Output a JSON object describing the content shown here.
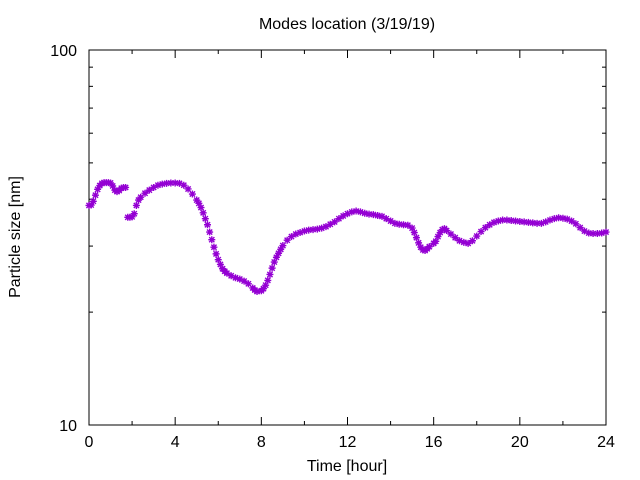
{
  "chart_data": {
    "type": "scatter",
    "title": "Modes location (3/19/19)",
    "xlabel": "Time [hour]",
    "ylabel": "Particle size [nm]",
    "xlim": [
      0,
      24
    ],
    "ylim": [
      10,
      100
    ],
    "yscale": "log",
    "x_ticks": [
      "0",
      "4",
      "8",
      "12",
      "16",
      "20",
      "24"
    ],
    "y_ticks": [
      "10",
      "100"
    ],
    "grid": false,
    "marker": "star",
    "color": "#9400d3",
    "series": [
      {
        "points": [
          [
            0.0,
            38.5
          ],
          [
            0.1,
            38.6
          ],
          [
            0.2,
            39.5
          ],
          [
            0.3,
            41.0
          ],
          [
            0.4,
            42.5
          ],
          [
            0.5,
            43.5
          ],
          [
            0.6,
            44.1
          ],
          [
            0.7,
            44.3
          ],
          [
            0.8,
            44.3
          ],
          [
            0.9,
            44.3
          ],
          [
            1.0,
            44.2
          ],
          [
            1.1,
            43.4
          ],
          [
            1.2,
            42.3
          ],
          [
            1.3,
            41.9
          ],
          [
            1.4,
            42.2
          ],
          [
            1.5,
            42.8
          ],
          [
            1.6,
            43.0
          ],
          [
            1.7,
            43.0
          ],
          [
            1.8,
            35.8
          ],
          [
            1.9,
            35.8
          ],
          [
            2.0,
            35.9
          ],
          [
            2.1,
            36.6
          ],
          [
            2.2,
            38.5
          ],
          [
            2.3,
            39.8
          ],
          [
            2.4,
            40.5
          ],
          [
            2.6,
            41.5
          ],
          [
            2.8,
            42.3
          ],
          [
            3.0,
            43.0
          ],
          [
            3.2,
            43.6
          ],
          [
            3.4,
            43.9
          ],
          [
            3.6,
            44.1
          ],
          [
            3.8,
            44.2
          ],
          [
            4.0,
            44.2
          ],
          [
            4.2,
            44.1
          ],
          [
            4.4,
            43.6
          ],
          [
            4.6,
            42.6
          ],
          [
            4.8,
            41.3
          ],
          [
            5.0,
            39.8
          ],
          [
            5.1,
            39.0
          ],
          [
            5.2,
            38.0
          ],
          [
            5.3,
            36.8
          ],
          [
            5.4,
            35.5
          ],
          [
            5.5,
            34.2
          ],
          [
            5.6,
            32.7
          ],
          [
            5.7,
            31.2
          ],
          [
            5.8,
            29.8
          ],
          [
            5.9,
            28.6
          ],
          [
            6.0,
            27.6
          ],
          [
            6.1,
            26.8
          ],
          [
            6.2,
            26.1
          ],
          [
            6.3,
            25.7
          ],
          [
            6.4,
            25.4
          ],
          [
            6.6,
            25.0
          ],
          [
            6.8,
            24.7
          ],
          [
            7.0,
            24.5
          ],
          [
            7.2,
            24.2
          ],
          [
            7.4,
            23.8
          ],
          [
            7.6,
            23.2
          ],
          [
            7.7,
            22.9
          ],
          [
            7.8,
            22.7
          ],
          [
            8.0,
            22.8
          ],
          [
            8.1,
            23.1
          ],
          [
            8.2,
            23.6
          ],
          [
            8.3,
            24.3
          ],
          [
            8.4,
            25.2
          ],
          [
            8.5,
            26.2
          ],
          [
            8.6,
            27.2
          ],
          [
            8.7,
            28.0
          ],
          [
            8.8,
            28.7
          ],
          [
            8.9,
            29.4
          ],
          [
            9.0,
            30.1
          ],
          [
            9.2,
            31.1
          ],
          [
            9.4,
            31.8
          ],
          [
            9.6,
            32.3
          ],
          [
            9.8,
            32.6
          ],
          [
            10.0,
            32.9
          ],
          [
            10.2,
            33.1
          ],
          [
            10.4,
            33.2
          ],
          [
            10.6,
            33.3
          ],
          [
            10.8,
            33.5
          ],
          [
            11.0,
            33.8
          ],
          [
            11.2,
            34.3
          ],
          [
            11.4,
            34.8
          ],
          [
            11.6,
            35.5
          ],
          [
            11.8,
            36.1
          ],
          [
            12.0,
            36.6
          ],
          [
            12.2,
            37.0
          ],
          [
            12.4,
            37.2
          ],
          [
            12.6,
            37.0
          ],
          [
            12.8,
            36.7
          ],
          [
            13.0,
            36.5
          ],
          [
            13.2,
            36.4
          ],
          [
            13.4,
            36.2
          ],
          [
            13.6,
            36.0
          ],
          [
            13.8,
            35.5
          ],
          [
            14.0,
            35.0
          ],
          [
            14.2,
            34.5
          ],
          [
            14.4,
            34.3
          ],
          [
            14.6,
            34.2
          ],
          [
            14.8,
            34.1
          ],
          [
            15.0,
            33.5
          ],
          [
            15.1,
            32.6
          ],
          [
            15.2,
            31.6
          ],
          [
            15.3,
            30.6
          ],
          [
            15.4,
            29.8
          ],
          [
            15.5,
            29.3
          ],
          [
            15.6,
            29.2
          ],
          [
            15.7,
            29.5
          ],
          [
            15.8,
            29.9
          ],
          [
            16.0,
            30.5
          ],
          [
            16.1,
            30.9
          ],
          [
            16.2,
            31.8
          ],
          [
            16.3,
            32.6
          ],
          [
            16.4,
            33.2
          ],
          [
            16.5,
            33.4
          ],
          [
            16.6,
            33.0
          ],
          [
            16.8,
            32.3
          ],
          [
            17.0,
            31.6
          ],
          [
            17.2,
            31.0
          ],
          [
            17.4,
            30.7
          ],
          [
            17.6,
            30.5
          ],
          [
            17.8,
            31.0
          ],
          [
            18.0,
            31.9
          ],
          [
            18.2,
            32.8
          ],
          [
            18.4,
            33.6
          ],
          [
            18.6,
            34.2
          ],
          [
            18.8,
            34.7
          ],
          [
            19.0,
            35.0
          ],
          [
            19.2,
            35.2
          ],
          [
            19.4,
            35.2
          ],
          [
            19.6,
            35.1
          ],
          [
            19.8,
            35.0
          ],
          [
            20.0,
            34.9
          ],
          [
            20.2,
            34.8
          ],
          [
            20.4,
            34.7
          ],
          [
            20.6,
            34.6
          ],
          [
            20.8,
            34.5
          ],
          [
            21.0,
            34.5
          ],
          [
            21.2,
            34.8
          ],
          [
            21.4,
            35.2
          ],
          [
            21.6,
            35.5
          ],
          [
            21.8,
            35.7
          ],
          [
            22.0,
            35.6
          ],
          [
            22.2,
            35.4
          ],
          [
            22.4,
            35.0
          ],
          [
            22.6,
            34.4
          ],
          [
            22.8,
            33.6
          ],
          [
            23.0,
            32.9
          ],
          [
            23.2,
            32.5
          ],
          [
            23.4,
            32.4
          ],
          [
            23.6,
            32.4
          ],
          [
            23.8,
            32.5
          ],
          [
            24.0,
            32.7
          ]
        ]
      }
    ]
  }
}
